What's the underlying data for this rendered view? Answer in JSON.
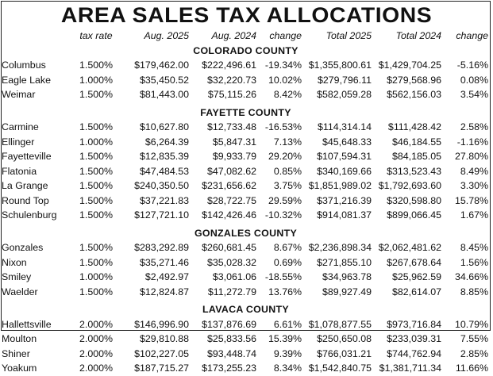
{
  "title": "AREA SALES TAX ALLOCATIONS",
  "columns": {
    "rate": "tax rate",
    "aug_2025": "Aug. 2025",
    "aug_2024": "Aug. 2024",
    "change": "change",
    "total_2025": "Total 2025",
    "total_2024": "Total 2024",
    "total_change": "change"
  },
  "counties": [
    {
      "name": "COLORADO COUNTY",
      "rows": [
        {
          "city": "Columbus",
          "rate": "1.500%",
          "aug_2025": "$179,462.00",
          "aug_2024": "$222,496.61",
          "change": "-19.34%",
          "total_2025": "$1,355,800.61",
          "total_2024": "$1,429,704.25",
          "total_change": "-5.16%"
        },
        {
          "city": "Eagle Lake",
          "rate": "1.000%",
          "aug_2025": "$35,450.52",
          "aug_2024": "$32,220.73",
          "change": "10.02%",
          "total_2025": "$279,796.11",
          "total_2024": "$279,568.96",
          "total_change": "0.08%"
        },
        {
          "city": "Weimar",
          "rate": "1.500%",
          "aug_2025": "$81,443.00",
          "aug_2024": "$75,115.26",
          "change": "8.42%",
          "total_2025": "$582,059.28",
          "total_2024": "$562,156.03",
          "total_change": "3.54%"
        }
      ]
    },
    {
      "name": "FAYETTE COUNTY",
      "rows": [
        {
          "city": "Carmine",
          "rate": "1.500%",
          "aug_2025": "$10,627.80",
          "aug_2024": "$12,733.48",
          "change": "-16.53%",
          "total_2025": "$114,314.14",
          "total_2024": "$111,428.42",
          "total_change": "2.58%"
        },
        {
          "city": "Ellinger",
          "rate": "1.000%",
          "aug_2025": "$6,264.39",
          "aug_2024": "$5,847.31",
          "change": "7.13%",
          "total_2025": "$45,648.33",
          "total_2024": "$46,184.55",
          "total_change": "-1.16%"
        },
        {
          "city": "Fayetteville",
          "rate": "1.500%",
          "aug_2025": "$12,835.39",
          "aug_2024": "$9,933.79",
          "change": "29.20%",
          "total_2025": "$107,594.31",
          "total_2024": "$84,185.05",
          "total_change": "27.80%"
        },
        {
          "city": "Flatonia",
          "rate": "1.500%",
          "aug_2025": "$47,484.53",
          "aug_2024": "$47,082.62",
          "change": "0.85%",
          "total_2025": "$340,169.66",
          "total_2024": "$313,523.43",
          "total_change": "8.49%"
        },
        {
          "city": "La Grange",
          "rate": "1.500%",
          "aug_2025": "$240,350.50",
          "aug_2024": "$231,656.62",
          "change": "3.75%",
          "total_2025": "$1,851,989.02",
          "total_2024": "$1,792,693.60",
          "total_change": "3.30%"
        },
        {
          "city": "Round Top",
          "rate": "1.500%",
          "aug_2025": "$37,221.83",
          "aug_2024": "$28,722.75",
          "change": "29.59%",
          "total_2025": "$371,216.39",
          "total_2024": "$320,598.80",
          "total_change": "15.78%"
        },
        {
          "city": "Schulenburg",
          "rate": "1.500%",
          "aug_2025": "$127,721.10",
          "aug_2024": "$142,426.46",
          "change": "-10.32%",
          "total_2025": "$914,081.37",
          "total_2024": "$899,066.45",
          "total_change": "1.67%"
        }
      ]
    },
    {
      "name": "GONZALES COUNTY",
      "rows": [
        {
          "city": "Gonzales",
          "rate": "1.500%",
          "aug_2025": "$283,292.89",
          "aug_2024": "$260,681.45",
          "change": "8.67%",
          "total_2025": "$2,236,898.34",
          "total_2024": "$2,062,481.62",
          "total_change": "8.45%"
        },
        {
          "city": "Nixon",
          "rate": "1.500%",
          "aug_2025": "$35,271.46",
          "aug_2024": "$35,028.32",
          "change": "0.69%",
          "total_2025": "$271,855.10",
          "total_2024": "$267,678.64",
          "total_change": "1.56%"
        },
        {
          "city": "Smiley",
          "rate": "1.000%",
          "aug_2025": "$2,492.97",
          "aug_2024": "$3,061.06",
          "change": "-18.55%",
          "total_2025": "$34,963.78",
          "total_2024": "$25,962.59",
          "total_change": "34.66%"
        },
        {
          "city": "Waelder",
          "rate": "1.500%",
          "aug_2025": "$12,824.87",
          "aug_2024": "$11,272.79",
          "change": "13.76%",
          "total_2025": "$89,927.49",
          "total_2024": "$82,614.07",
          "total_change": "8.85%"
        }
      ]
    },
    {
      "name": "LAVACA COUNTY",
      "rows": [
        {
          "city": "Hallettsville",
          "rate": "2.000%",
          "aug_2025": "$146,996.90",
          "aug_2024": "$137,876.69",
          "change": "6.61%",
          "total_2025": "$1,078,877.55",
          "total_2024": "$973,716.84",
          "total_change": "10.79%"
        },
        {
          "city": "Moulton",
          "rate": "2.000%",
          "aug_2025": "$29,810.88",
          "aug_2024": "$25,833.56",
          "change": "15.39%",
          "total_2025": "$250,650.08",
          "total_2024": "$233,039.31",
          "total_change": "7.55%"
        },
        {
          "city": "Shiner",
          "rate": "2.000%",
          "aug_2025": "$102,227.05",
          "aug_2024": "$93,448.74",
          "change": "9.39%",
          "total_2025": "$766,031.21",
          "total_2024": "$744,762.94",
          "total_change": "2.85%"
        },
        {
          "city": "Yoakum",
          "rate": "2.000%",
          "aug_2025": "$187,715.27",
          "aug_2024": "$173,255.23",
          "change": "8.34%",
          "total_2025": "$1,542,840.75",
          "total_2024": "$1,381,711.34",
          "total_change": "11.66%"
        }
      ]
    }
  ]
}
